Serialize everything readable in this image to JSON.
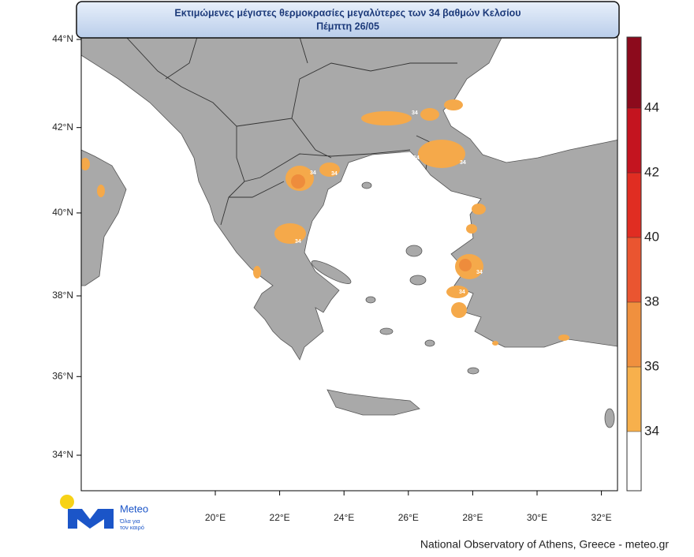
{
  "header": {
    "title": "Εκτιμώμενες μέγιστες θερμοκρασίες μεγαλύτερες των 34 βαθμών Κελσίου",
    "subtitle": "Πέμπτη 26/05"
  },
  "map": {
    "lat_ticks": [
      {
        "value": 44,
        "label": "44°N"
      },
      {
        "value": 42,
        "label": "42°N"
      },
      {
        "value": 40,
        "label": "40°N"
      },
      {
        "value": 38,
        "label": "38°N"
      },
      {
        "value": 36,
        "label": "36°N"
      },
      {
        "value": 34,
        "label": "34°N"
      }
    ],
    "lon_ticks": [
      {
        "value": 20,
        "label": "20°E"
      },
      {
        "value": 22,
        "label": "22°E"
      },
      {
        "value": 24,
        "label": "24°E"
      },
      {
        "value": 26,
        "label": "26°E"
      },
      {
        "value": 28,
        "label": "28°E"
      },
      {
        "value": 30,
        "label": "30°E"
      },
      {
        "value": 32,
        "label": "32°E"
      }
    ],
    "contour_labels": [
      "34",
      "34",
      "34",
      "34",
      "34",
      "34",
      "34",
      "34",
      "34"
    ]
  },
  "colorbar": {
    "levels": [
      34,
      36,
      38,
      40,
      42,
      44
    ],
    "colors": [
      "#ffffff",
      "#f7b04c",
      "#f0903e",
      "#ea5530",
      "#e02d22",
      "#c4141f",
      "#8c0a1c"
    ]
  },
  "logo": {
    "name": "Meteo",
    "tagline_1": "Όλα για",
    "tagline_2": "τον καιρό"
  },
  "footer": "National Observatory of Athens, Greece - meteo.gr"
}
